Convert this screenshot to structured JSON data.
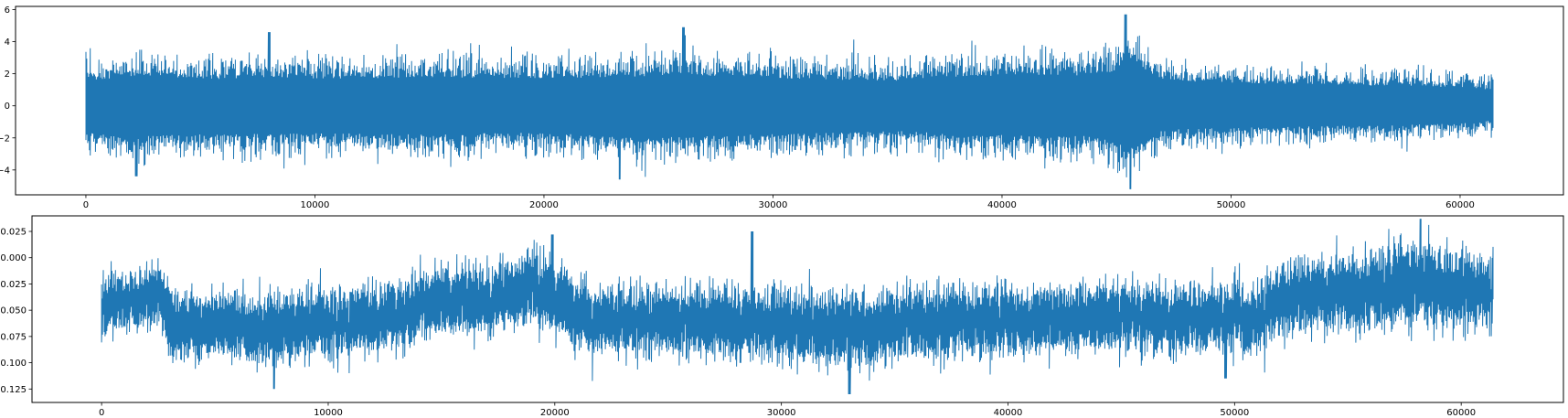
{
  "chart_data": [
    {
      "type": "line",
      "title": "",
      "xlabel": "",
      "ylabel": "",
      "n_points": 61440,
      "xlim": [
        -3072,
        64512
      ],
      "ylim": [
        -5.55,
        6.2
      ],
      "xticks": [
        0,
        10000,
        20000,
        30000,
        40000,
        50000,
        60000
      ],
      "xtick_labels": [
        "0",
        "10000",
        "20000",
        "30000",
        "40000",
        "50000",
        "60000"
      ],
      "yticks": [
        -4,
        -2,
        0,
        2,
        4,
        6
      ],
      "ytick_labels": [
        "−4",
        "−2",
        "0",
        "2",
        "4",
        "6"
      ],
      "grid": false,
      "legend": "none",
      "color": "#1f77b4",
      "series": [
        {
          "x": [
            0,
            2000,
            4000,
            6000,
            8000,
            10000,
            12000,
            14000,
            16000,
            18000,
            20000,
            22000,
            24000,
            26000,
            28000,
            30000,
            32000,
            34000,
            36000,
            38000,
            40000,
            42000,
            44000,
            45000,
            45500,
            46000,
            47000,
            48000,
            50000,
            52000,
            54000,
            56000,
            58000,
            60000,
            61440
          ],
          "upper_envelope": [
            2.9,
            3.3,
            3.2,
            3.0,
            3.3,
            3.1,
            3.1,
            3.2,
            3.2,
            3.1,
            3.1,
            3.2,
            3.3,
            3.6,
            3.3,
            3.1,
            3.0,
            2.9,
            2.8,
            3.3,
            3.4,
            3.5,
            3.4,
            4.0,
            5.6,
            4.4,
            3.0,
            2.8,
            2.6,
            2.5,
            2.4,
            2.3,
            2.2,
            2.1,
            1.8
          ],
          "lower_envelope": [
            -3.0,
            -3.5,
            -3.2,
            -3.1,
            -3.2,
            -3.1,
            -3.1,
            -3.2,
            -3.2,
            -3.0,
            -3.1,
            -3.3,
            -3.6,
            -3.5,
            -3.4,
            -3.0,
            -3.1,
            -2.9,
            -2.8,
            -3.3,
            -3.3,
            -3.4,
            -3.3,
            -4.0,
            -5.1,
            -4.0,
            -2.8,
            -2.6,
            -2.5,
            -2.4,
            -2.3,
            -2.2,
            -2.1,
            -2.0,
            -1.6
          ],
          "peaks": [
            {
              "x": 8000,
              "y": 4.6
            },
            {
              "x": 26100,
              "y": 4.9
            },
            {
              "x": 45400,
              "y": 5.7
            },
            {
              "x": 2200,
              "y": -4.4
            },
            {
              "x": 23300,
              "y": -4.6
            },
            {
              "x": 45600,
              "y": -5.2
            }
          ]
        }
      ]
    },
    {
      "type": "line",
      "title": "",
      "xlabel": "",
      "ylabel": "",
      "n_points": 61440,
      "xlim": [
        -3072,
        64512
      ],
      "ylim": [
        -0.1378,
        0.0398
      ],
      "xticks": [
        0,
        10000,
        20000,
        30000,
        40000,
        50000,
        60000
      ],
      "xtick_labels": [
        "0",
        "10000",
        "20000",
        "30000",
        "40000",
        "50000",
        "60000"
      ],
      "yticks": [
        -0.125,
        -0.1,
        -0.075,
        -0.05,
        -0.025,
        0.0,
        0.025
      ],
      "ytick_labels": [
        "−0.125",
        "−0.100",
        "−0.075",
        "−0.050",
        "−0.025",
        "0.000",
        "0.025"
      ],
      "grid": false,
      "legend": "none",
      "color": "#1f77b4",
      "series": [
        {
          "x": [
            0,
            1500,
            2700,
            3000,
            5000,
            7000,
            9000,
            11000,
            13000,
            14000,
            15000,
            17000,
            19000,
            20000,
            21000,
            23000,
            25000,
            27000,
            29000,
            31000,
            33000,
            35000,
            37000,
            39000,
            41000,
            43000,
            45000,
            47000,
            49000,
            51000,
            52000,
            54000,
            56000,
            58000,
            60000,
            61440
          ],
          "center": [
            -0.045,
            -0.04,
            -0.035,
            -0.062,
            -0.065,
            -0.068,
            -0.062,
            -0.062,
            -0.058,
            -0.045,
            -0.04,
            -0.042,
            -0.03,
            -0.035,
            -0.055,
            -0.06,
            -0.06,
            -0.06,
            -0.06,
            -0.065,
            -0.068,
            -0.065,
            -0.062,
            -0.058,
            -0.06,
            -0.058,
            -0.055,
            -0.058,
            -0.055,
            -0.058,
            -0.04,
            -0.035,
            -0.032,
            -0.025,
            -0.03,
            -0.032
          ],
          "half_width": [
            0.03,
            0.03,
            0.032,
            0.034,
            0.035,
            0.036,
            0.034,
            0.034,
            0.034,
            0.034,
            0.034,
            0.034,
            0.036,
            0.036,
            0.034,
            0.034,
            0.034,
            0.036,
            0.036,
            0.036,
            0.038,
            0.036,
            0.036,
            0.036,
            0.034,
            0.034,
            0.034,
            0.034,
            0.034,
            0.034,
            0.036,
            0.038,
            0.04,
            0.042,
            0.04,
            0.036
          ],
          "peaks": [
            {
              "x": 19900,
              "y": 0.022
            },
            {
              "x": 28700,
              "y": 0.025
            },
            {
              "x": 58200,
              "y": 0.037
            },
            {
              "x": 7600,
              "y": -0.125
            },
            {
              "x": 33000,
              "y": -0.13
            },
            {
              "x": 49600,
              "y": -0.115
            }
          ]
        }
      ]
    }
  ]
}
